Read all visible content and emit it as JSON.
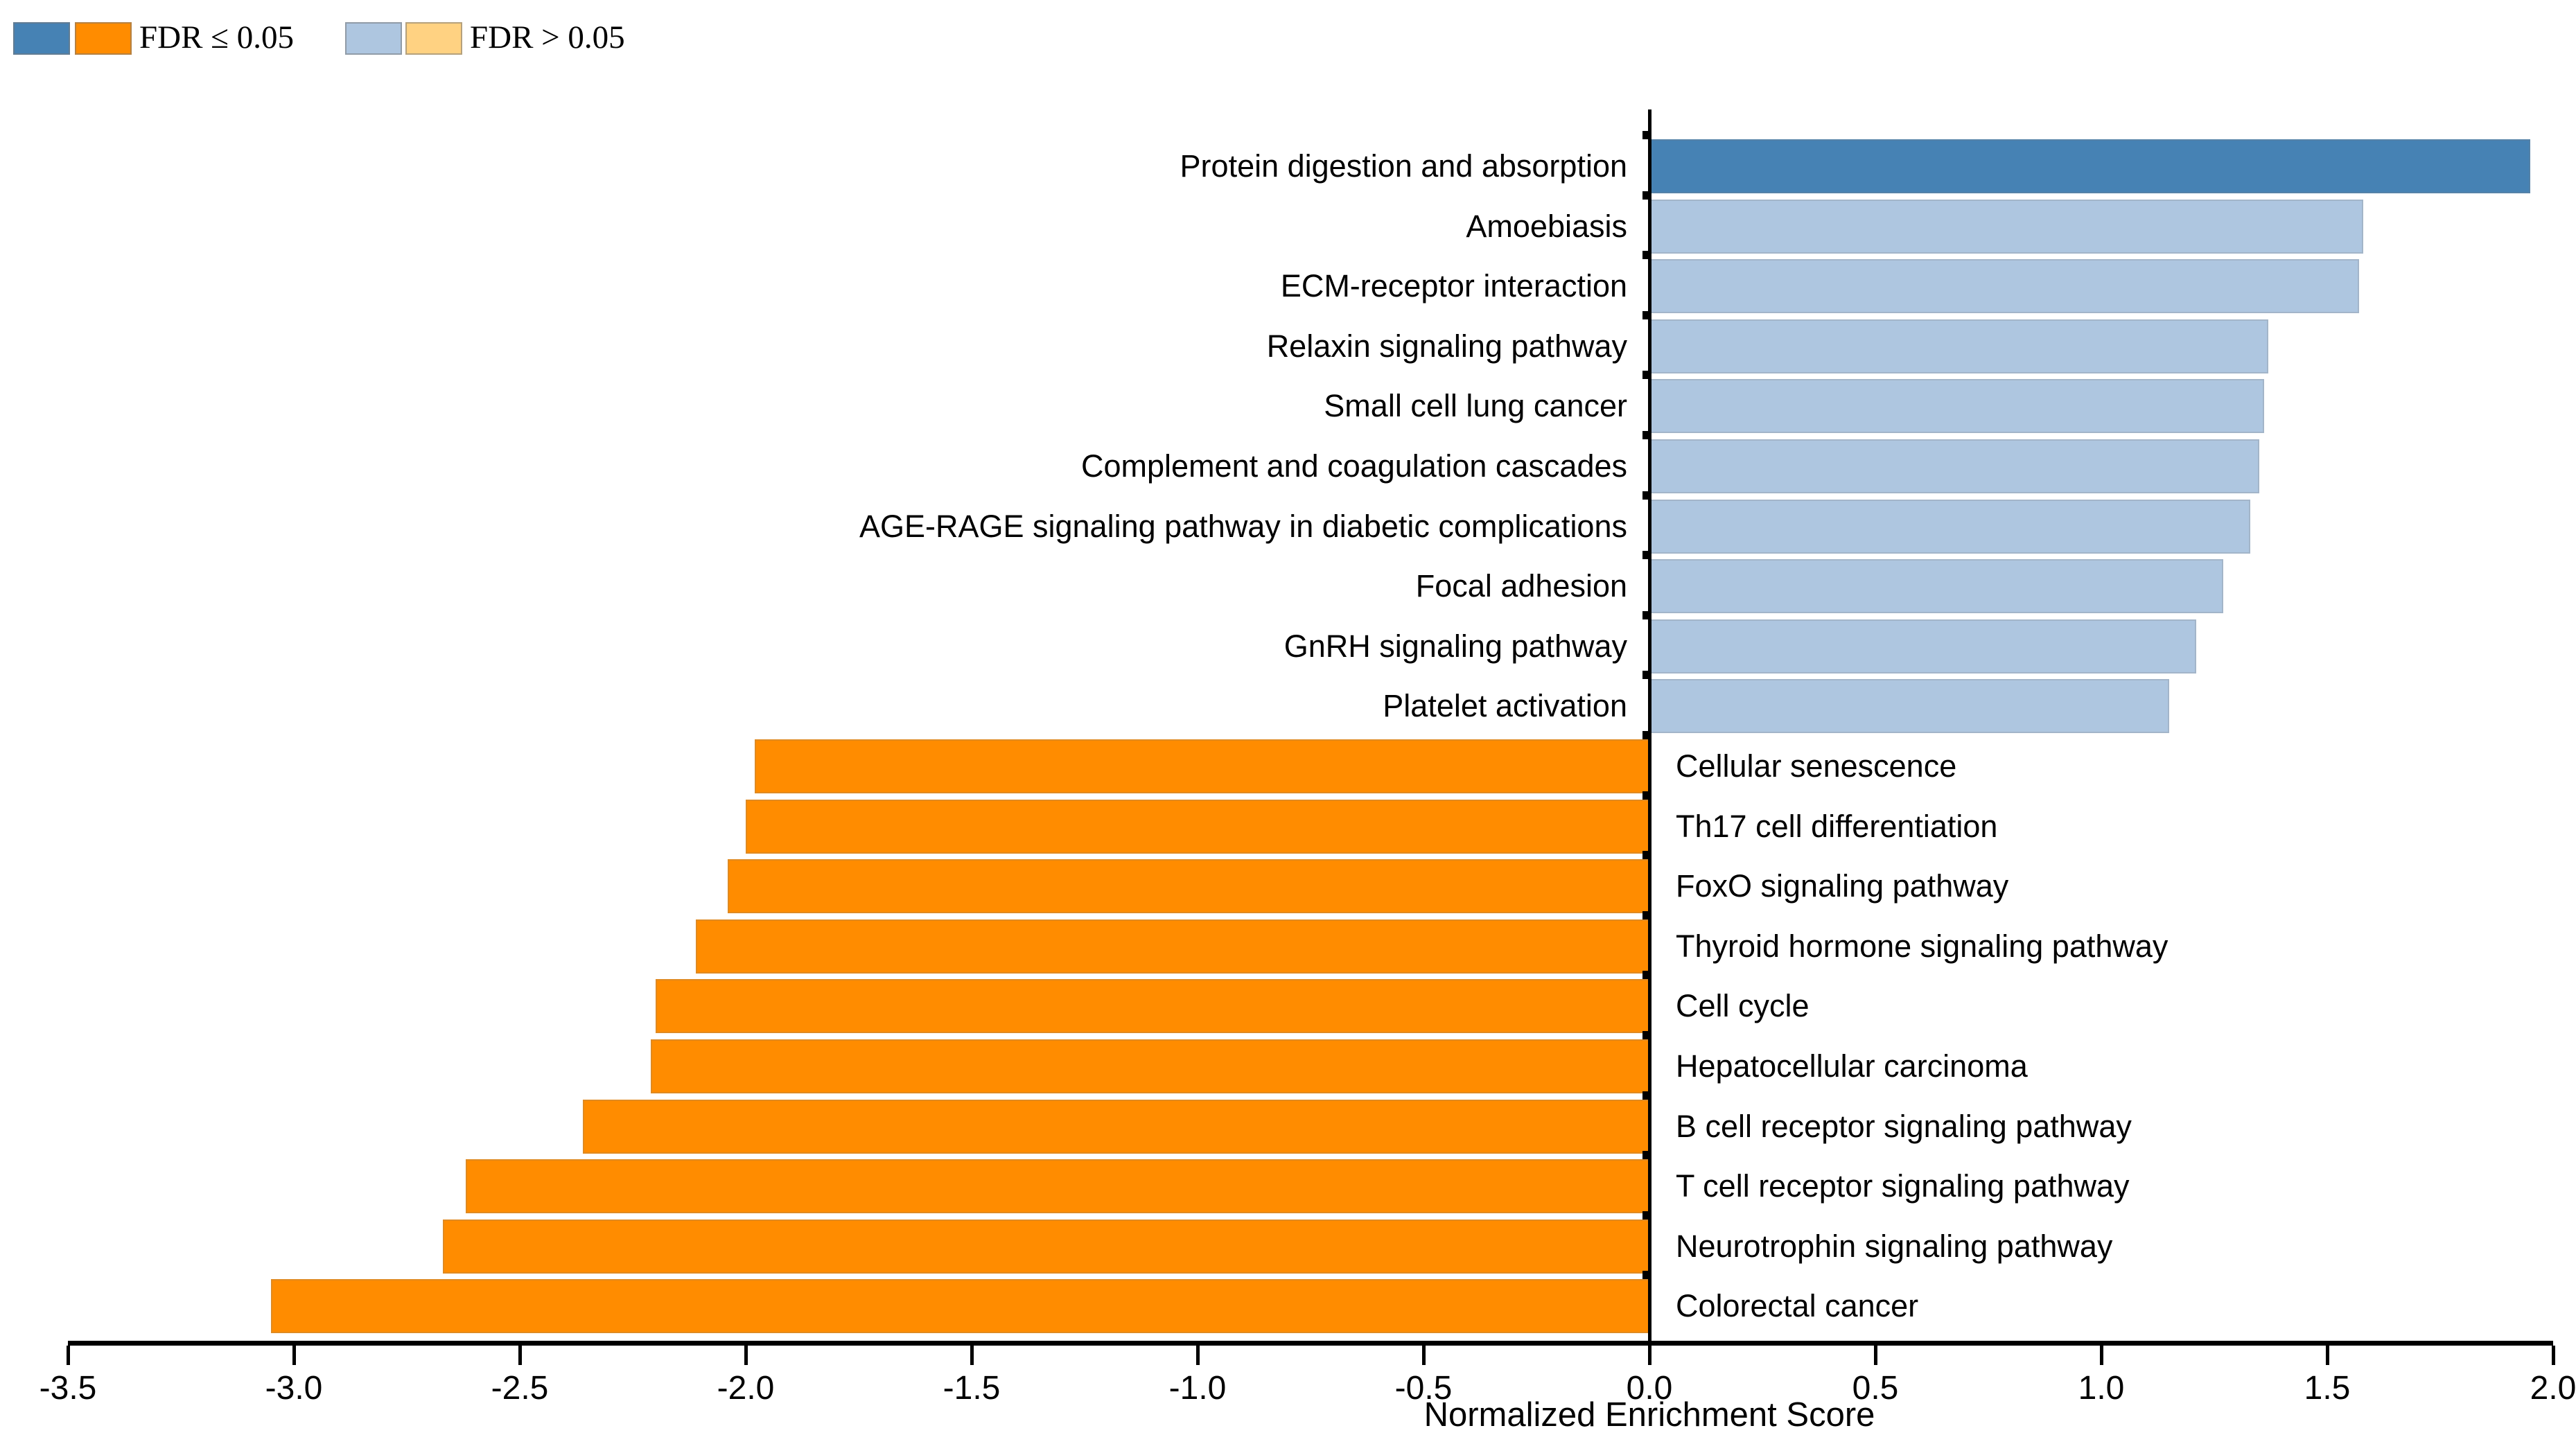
{
  "legend": {
    "items": [
      {
        "label": "FDR ≤ 0.05",
        "swatch_colors": [
          "#4682B4",
          "#FF8C00"
        ]
      },
      {
        "label": "FDR > 0.05",
        "swatch_colors": [
          "#AEC6E0",
          "#FFD282"
        ]
      }
    ]
  },
  "axis": {
    "title": "Normalized Enrichment Score",
    "tick_labels": [
      "-3.5",
      "-3.0",
      "-2.5",
      "-2.0",
      "-1.5",
      "-1.0",
      "-0.5",
      "0.0",
      "0.5",
      "1.0",
      "1.5",
      "2.0"
    ]
  },
  "chart_data": {
    "type": "bar",
    "orientation": "horizontal",
    "title": "",
    "xlabel": "Normalized Enrichment Score",
    "ylabel": "",
    "xlim": [
      -3.5,
      2.0
    ],
    "xticks": [
      -3.5,
      -3.0,
      -2.5,
      -2.0,
      -1.5,
      -1.0,
      -0.5,
      0.0,
      0.5,
      1.0,
      1.5,
      2.0
    ],
    "grid": false,
    "legend_position": "top-left",
    "palette": {
      "positive_fdr_le_0.05": "#4682B4",
      "positive_fdr_gt_0.05": "#AEC6E0",
      "negative_fdr_le_0.05": "#FF8C00",
      "negative_fdr_gt_0.05": "#FFD282"
    },
    "bars": [
      {
        "label": "Protein digestion and absorption",
        "value": 1.95,
        "fdr": "≤0.05",
        "color": "#4682B4"
      },
      {
        "label": "Amoebiasis",
        "value": 1.58,
        "fdr": ">0.05",
        "color": "#AEC6E0"
      },
      {
        "label": "ECM-receptor interaction",
        "value": 1.57,
        "fdr": ">0.05",
        "color": "#AEC6E0"
      },
      {
        "label": "Relaxin signaling pathway",
        "value": 1.37,
        "fdr": ">0.05",
        "color": "#AEC6E0"
      },
      {
        "label": "Small cell lung cancer",
        "value": 1.36,
        "fdr": ">0.05",
        "color": "#AEC6E0"
      },
      {
        "label": "Complement and coagulation cascades",
        "value": 1.35,
        "fdr": ">0.05",
        "color": "#AEC6E0"
      },
      {
        "label": "AGE-RAGE signaling pathway in diabetic complications",
        "value": 1.33,
        "fdr": ">0.05",
        "color": "#AEC6E0"
      },
      {
        "label": "Focal adhesion",
        "value": 1.27,
        "fdr": ">0.05",
        "color": "#AEC6E0"
      },
      {
        "label": "GnRH signaling pathway",
        "value": 1.21,
        "fdr": ">0.05",
        "color": "#AEC6E0"
      },
      {
        "label": "Platelet activation",
        "value": 1.15,
        "fdr": ">0.05",
        "color": "#AEC6E0"
      },
      {
        "label": "Cellular senescence",
        "value": -1.98,
        "fdr": "≤0.05",
        "color": "#FF8C00"
      },
      {
        "label": "Th17 cell differentiation",
        "value": -2.0,
        "fdr": "≤0.05",
        "color": "#FF8C00"
      },
      {
        "label": "FoxO signaling pathway",
        "value": -2.04,
        "fdr": "≤0.05",
        "color": "#FF8C00"
      },
      {
        "label": "Thyroid hormone signaling pathway",
        "value": -2.11,
        "fdr": "≤0.05",
        "color": "#FF8C00"
      },
      {
        "label": "Cell cycle",
        "value": -2.2,
        "fdr": "≤0.05",
        "color": "#FF8C00"
      },
      {
        "label": "Hepatocellular carcinoma",
        "value": -2.21,
        "fdr": "≤0.05",
        "color": "#FF8C00"
      },
      {
        "label": "B cell receptor signaling pathway",
        "value": -2.36,
        "fdr": "≤0.05",
        "color": "#FF8C00"
      },
      {
        "label": "T cell receptor signaling pathway",
        "value": -2.62,
        "fdr": "≤0.05",
        "color": "#FF8C00"
      },
      {
        "label": "Neurotrophin signaling pathway",
        "value": -2.67,
        "fdr": "≤0.05",
        "color": "#FF8C00"
      },
      {
        "label": "Colorectal cancer",
        "value": -3.05,
        "fdr": "≤0.05",
        "color": "#FF8C00"
      }
    ]
  }
}
